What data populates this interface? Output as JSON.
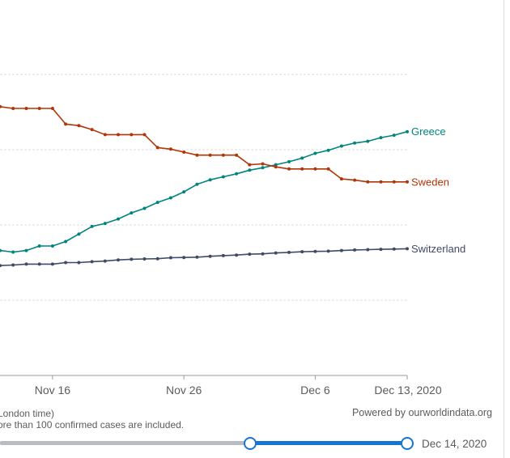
{
  "chart_data": {
    "type": "line",
    "x_axis": {
      "ticks": [
        {
          "label": "Nov 16",
          "day": 16
        },
        {
          "label": "Nov 26",
          "day": 26
        },
        {
          "label": "Dec 6",
          "day": 36
        },
        {
          "label": "Dec 13, 2020",
          "day": 43
        }
      ]
    },
    "y_axis": {
      "gridlines": 4
    },
    "series": [
      {
        "name": "Greece",
        "color": "#00847e",
        "x": [
          12,
          13,
          14,
          15,
          16,
          17,
          18,
          19,
          20,
          21,
          22,
          23,
          24,
          25,
          26,
          27,
          28,
          29,
          30,
          31,
          32,
          33,
          34,
          35,
          36,
          37,
          38,
          39,
          40,
          41,
          42,
          43
        ],
        "values": [
          0.415,
          0.41,
          0.415,
          0.43,
          0.43,
          0.445,
          0.47,
          0.495,
          0.505,
          0.52,
          0.54,
          0.555,
          0.575,
          0.59,
          0.61,
          0.635,
          0.65,
          0.66,
          0.67,
          0.682,
          0.69,
          0.7,
          0.71,
          0.722,
          0.738,
          0.748,
          0.762,
          0.772,
          0.778,
          0.79,
          0.798,
          0.81
        ]
      },
      {
        "name": "Sweden",
        "color": "#b13507",
        "x": [
          12,
          13,
          14,
          15,
          16,
          17,
          18,
          19,
          20,
          21,
          22,
          23,
          24,
          25,
          26,
          27,
          28,
          29,
          30,
          31,
          32,
          33,
          34,
          35,
          36,
          37,
          38,
          39,
          40,
          41,
          42,
          43
        ],
        "values": [
          0.893,
          0.887,
          0.887,
          0.887,
          0.887,
          0.835,
          0.83,
          0.817,
          0.8,
          0.8,
          0.8,
          0.8,
          0.757,
          0.752,
          0.742,
          0.732,
          0.732,
          0.732,
          0.732,
          0.7,
          0.703,
          0.693,
          0.686,
          0.686,
          0.686,
          0.686,
          0.653,
          0.649,
          0.643,
          0.643,
          0.643,
          0.643
        ]
      },
      {
        "name": "Switzerland",
        "color": "#3e4b66",
        "x": [
          12,
          13,
          14,
          15,
          16,
          17,
          18,
          19,
          20,
          21,
          22,
          23,
          24,
          25,
          26,
          27,
          28,
          29,
          30,
          31,
          32,
          33,
          34,
          35,
          36,
          37,
          38,
          39,
          40,
          41,
          42,
          43
        ],
        "values": [
          0.365,
          0.367,
          0.37,
          0.37,
          0.37,
          0.375,
          0.375,
          0.378,
          0.38,
          0.384,
          0.386,
          0.387,
          0.388,
          0.391,
          0.392,
          0.393,
          0.396,
          0.398,
          0.4,
          0.403,
          0.404,
          0.407,
          0.409,
          0.411,
          0.412,
          0.413,
          0.415,
          0.417,
          0.418,
          0.419,
          0.42,
          0.421
        ]
      }
    ]
  },
  "footer": {
    "note_line1": "London time)",
    "note_line2": "ore than 100 confirmed cases are included.",
    "credit": "Powered by ourworldindata.org"
  },
  "slider": {
    "end_date": "Dec 14, 2020"
  }
}
